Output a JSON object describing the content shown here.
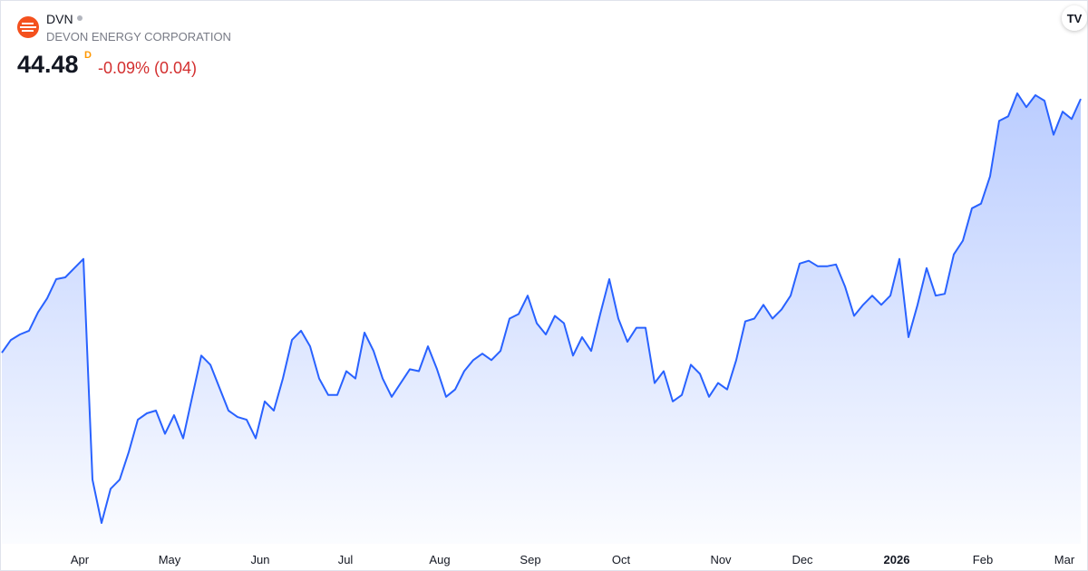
{
  "header": {
    "symbol": "DVN",
    "name": "DEVON ENERGY CORPORATION",
    "price": "44.48",
    "interval": "D",
    "change": "-0.09% (0.04)"
  },
  "chart_data": {
    "type": "area",
    "color": "#2962ff",
    "values": [
      33.41,
      33.97,
      34.21,
      34.37,
      35.18,
      35.78,
      36.62,
      36.7,
      37.1,
      37.5,
      27.88,
      25.99,
      27.48,
      27.88,
      29.08,
      30.49,
      30.77,
      30.89,
      29.88,
      30.69,
      29.68,
      31.49,
      33.29,
      32.89,
      31.89,
      30.89,
      30.61,
      30.49,
      29.68,
      31.29,
      30.89,
      32.29,
      33.97,
      34.37,
      33.69,
      32.29,
      31.57,
      31.57,
      32.61,
      32.29,
      34.29,
      33.49,
      32.29,
      31.49,
      32.09,
      32.69,
      32.61,
      33.69,
      32.69,
      31.49,
      31.81,
      32.61,
      33.09,
      33.37,
      33.09,
      33.49,
      34.9,
      35.1,
      35.9,
      34.7,
      34.21,
      35.02,
      34.7,
      33.29,
      34.09,
      33.49,
      35.1,
      36.62,
      34.9,
      33.89,
      34.5,
      34.5,
      32.09,
      32.61,
      31.29,
      31.57,
      32.89,
      32.49,
      31.49,
      32.09,
      31.81,
      33.09,
      34.78,
      34.9,
      35.5,
      34.9,
      35.3,
      35.9,
      37.3,
      37.42,
      37.18,
      37.18,
      37.26,
      36.3,
      35.02,
      35.5,
      35.9,
      35.5,
      35.9,
      37.5,
      34.09,
      35.5,
      37.1,
      35.9,
      35.98,
      37.7,
      38.3,
      39.71,
      39.91,
      41.11,
      43.52,
      43.72,
      44.72,
      44.12,
      44.64,
      44.4,
      42.92,
      43.92,
      43.6,
      44.48
    ],
    "xticks": [
      {
        "value": 8.6,
        "label": "Apr"
      },
      {
        "value": 18.5,
        "label": "May"
      },
      {
        "value": 28.5,
        "label": "Jun"
      },
      {
        "value": 37.9,
        "label": "Jul"
      },
      {
        "value": 48.3,
        "label": "Aug"
      },
      {
        "value": 58.3,
        "label": "Sep"
      },
      {
        "value": 68.3,
        "label": "Oct"
      },
      {
        "value": 79.3,
        "label": "Nov"
      },
      {
        "value": 88.3,
        "label": "Dec"
      },
      {
        "value": 98.7,
        "label": "2026",
        "bold": true
      },
      {
        "value": 108.2,
        "label": "Feb"
      },
      {
        "value": 117.2,
        "label": "Mar"
      }
    ]
  }
}
